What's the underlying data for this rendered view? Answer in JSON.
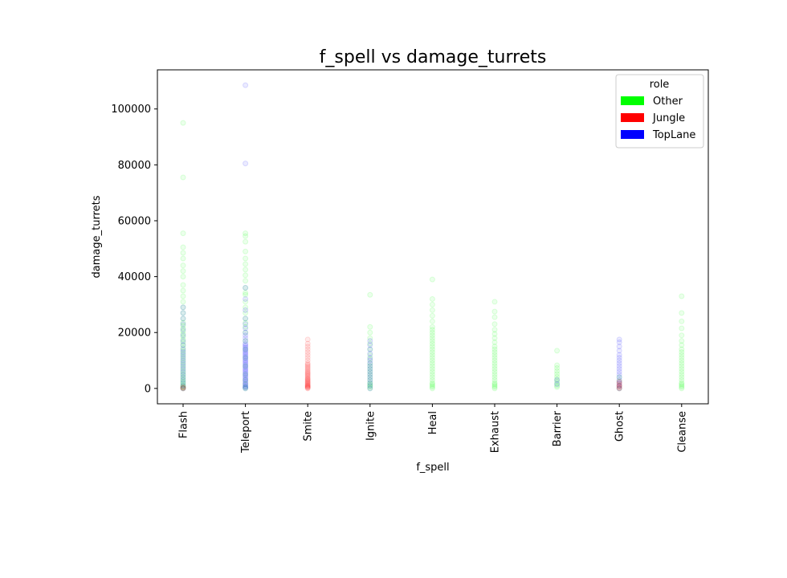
{
  "chart_data": {
    "type": "scatter",
    "title": "f_spell vs damage_turrets",
    "xlabel": "f_spell",
    "ylabel": "damage_turrets",
    "categories": [
      "Flash",
      "Teleport",
      "Smite",
      "Ignite",
      "Heal",
      "Exhaust",
      "Barrier",
      "Ghost",
      "Cleanse"
    ],
    "yticks": [
      0,
      20000,
      40000,
      60000,
      80000,
      100000
    ],
    "ylim": [
      -5500,
      114000
    ],
    "grid": false,
    "legend": {
      "title": "role",
      "placement": "top-right",
      "entries": [
        {
          "name": "Other",
          "color": "#00ff00"
        },
        {
          "name": "Jungle",
          "color": "#ff0000"
        },
        {
          "name": "TopLane",
          "color": "#0000ff"
        }
      ]
    },
    "series": [
      {
        "name": "Other",
        "color": "#00ff00",
        "points": {
          "Flash": [
            0,
            200,
            500,
            900,
            1400,
            2000,
            2600,
            3300,
            4000,
            4800,
            5600,
            6500,
            7500,
            8500,
            9500,
            10500,
            11500,
            12500,
            13500,
            14500,
            15500,
            16500,
            17500,
            18500,
            19500,
            20500,
            21500,
            22500,
            23500,
            25000,
            27000,
            29000,
            31000,
            33000,
            35000,
            37000,
            40000,
            42000,
            44000,
            46500,
            48500,
            50500,
            55500,
            75500,
            95000
          ],
          "Teleport": [
            0,
            500,
            1500,
            3000,
            5000,
            8000,
            11000,
            14000,
            17000,
            20000,
            22000,
            23500,
            25000,
            27000,
            29000,
            31000,
            33500,
            34200,
            36000,
            38500,
            40500,
            42500,
            44500,
            46500,
            49000,
            52500,
            54500,
            55500
          ],
          "Ignite": [
            0,
            500,
            1000,
            1500,
            2000,
            3000,
            4000,
            5000,
            6000,
            7000,
            8000,
            9000,
            10500,
            12000,
            14000,
            16000,
            18000,
            20000,
            22000,
            33500
          ],
          "Heal": [
            0,
            500,
            1000,
            1500,
            2000,
            3000,
            4000,
            5000,
            6000,
            7000,
            8000,
            9000,
            10000,
            11000,
            12000,
            13000,
            14000,
            15000,
            16000,
            17000,
            18000,
            19000,
            20000,
            21000,
            22000,
            24000,
            26000,
            28000,
            30000,
            32000,
            39000
          ],
          "Exhaust": [
            0,
            500,
            1000,
            1500,
            2000,
            3000,
            4000,
            5000,
            6000,
            7000,
            8000,
            9000,
            10000,
            11000,
            12000,
            13000,
            14000,
            15000,
            16500,
            18000,
            19500,
            21000,
            23000,
            25500,
            27500,
            31000
          ],
          "Barrier": [
            500,
            1000,
            1800,
            2500,
            3300,
            4200,
            5200,
            6200,
            7300,
            8300,
            13500
          ],
          "Ghost": [
            0,
            1000,
            2500,
            4000
          ],
          "Cleanse": [
            0,
            500,
            1000,
            1500,
            2000,
            3000,
            4000,
            5000,
            6000,
            7000,
            8000,
            9000,
            10000,
            11000,
            12000,
            13000,
            14000,
            15500,
            17000,
            19000,
            21500,
            24000,
            27000,
            33000
          ]
        }
      },
      {
        "name": "Jungle",
        "color": "#ff0000",
        "points": {
          "Flash": [
            0,
            200,
            500
          ],
          "Smite": [
            0,
            200,
            400,
            600,
            800,
            1000,
            1200,
            1500,
            1800,
            2100,
            2400,
            2700,
            3000,
            3300,
            3600,
            4000,
            4400,
            4800,
            5200,
            5600,
            6000,
            6500,
            7000,
            7500,
            8000,
            8500,
            9000,
            10000,
            11000,
            12000,
            13000,
            14000,
            15000,
            16000,
            17500
          ],
          "Ghost": [
            0,
            300,
            700,
            1000,
            1500,
            2000,
            2500
          ]
        }
      },
      {
        "name": "TopLane",
        "color": "#0000ff",
        "points": {
          "Flash": [
            0,
            1000,
            2000,
            3000,
            4000,
            5000,
            6000,
            7000,
            8000,
            9000,
            10000,
            11000,
            12000,
            13000,
            14000,
            15500,
            17000,
            19000,
            21000,
            23000,
            25000,
            27000,
            29000
          ],
          "Teleport": [
            0,
            300,
            600,
            1000,
            1500,
            2000,
            2500,
            3000,
            3500,
            4000,
            4500,
            5000,
            5500,
            6000,
            6500,
            7000,
            7500,
            8000,
            8500,
            9000,
            9500,
            10000,
            10500,
            11000,
            11500,
            12000,
            12500,
            13000,
            13500,
            14000,
            14500,
            15000,
            15500,
            16000,
            17000,
            18000,
            19000,
            20000,
            21500,
            23000,
            25000,
            28000,
            32000,
            36000,
            80500,
            108500
          ],
          "Ignite": [
            0,
            1000,
            2000,
            3000,
            4000,
            5000,
            6000,
            7000,
            8000,
            9000,
            10000,
            11000,
            12500,
            14000,
            15500,
            17000
          ],
          "Barrier": [
            1500,
            3000
          ],
          "Ghost": [
            0,
            1000,
            2000,
            3000,
            4000,
            5000,
            6000,
            7000,
            8000,
            9000,
            10000,
            11000,
            12000,
            13500,
            15000,
            16500,
            17500
          ]
        }
      }
    ]
  }
}
